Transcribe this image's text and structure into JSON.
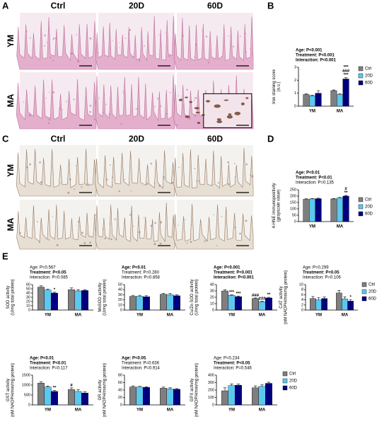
{
  "panel_labels": [
    "A",
    "B",
    "C",
    "D",
    "E"
  ],
  "histology": [
    {
      "columns": [
        "Ctrl",
        "20D",
        "60D"
      ],
      "rows": [
        "YM",
        "MA"
      ]
    },
    {
      "columns": [
        "Ctrl",
        "20D",
        "60D"
      ],
      "rows": [
        "YM",
        "MA"
      ]
    }
  ],
  "chart_data": [
    {
      "type": "bar",
      "stats": [
        {
          "text": "Age: P<0.001",
          "bold": true
        },
        {
          "text": "Treatment: P<0.001",
          "bold": true
        },
        {
          "text": "Interaction: P<0.001",
          "bold": true
        }
      ],
      "ylabel": [
        "Iron staining score",
        "(a.u.)"
      ],
      "categories": [
        "YM",
        "MA"
      ],
      "series": [
        {
          "name": "Ctrl",
          "color": "#7f7f7f",
          "values": [
            0.9,
            1.2
          ],
          "errors": [
            0.05,
            0.05
          ]
        },
        {
          "name": "20D",
          "color": "#5bc8f0",
          "values": [
            0.8,
            0.9
          ],
          "errors": [
            0.05,
            0.05
          ]
        },
        {
          "name": "60D",
          "color": "#00007f",
          "values": [
            1.0,
            2.1
          ],
          "errors": [
            0.2,
            0.1
          ]
        }
      ],
      "ylim": [
        0,
        3
      ],
      "yticks": [
        0,
        1,
        2,
        3
      ],
      "legend": "right",
      "annotations": [
        {
          "text": "***",
          "category": "MA",
          "series": "60D"
        },
        {
          "text": "###",
          "category": "MA",
          "series": "60D"
        },
        {
          "text": "***",
          "category": "MA",
          "series": "60D"
        }
      ]
    },
    {
      "type": "bar",
      "stats": [
        {
          "text": "Age: P<0.01",
          "bold": true
        },
        {
          "text": "Treatment: P<0.01",
          "bold": true
        },
        {
          "text": "Interaction: P=0.135",
          "bold": false
        }
      ],
      "ylabel": [
        "4-HNE immunopositivity",
        "(grayscale value)"
      ],
      "categories": [
        "YM",
        "MA"
      ],
      "series": [
        {
          "name": "Ctrl",
          "color": "#7f7f7f",
          "values": [
            175,
            178
          ],
          "errors": [
            4,
            4
          ]
        },
        {
          "name": "20D",
          "color": "#5bc8f0",
          "values": [
            178,
            185
          ],
          "errors": [
            4,
            4
          ]
        },
        {
          "name": "60D",
          "color": "#00007f",
          "values": [
            180,
            200
          ],
          "errors": [
            4,
            5
          ]
        }
      ],
      "ylim": [
        0,
        250
      ],
      "yticks": [
        0,
        50,
        100,
        150,
        200,
        250
      ],
      "legend": "right",
      "annotations": [
        {
          "text": "#",
          "category": "MA",
          "series": "60D"
        },
        {
          "text": "**",
          "category": "MA",
          "series": "60D"
        }
      ]
    },
    {
      "type": "bar",
      "stats": [
        {
          "text": "Age: P=0.567",
          "bold": false
        },
        {
          "text": "Treatment: P<0.05",
          "bold": true
        },
        {
          "text": "Interaction: P=0.085",
          "bold": false
        }
      ],
      "ylabel": [
        "SOD activity",
        "(U/mg total protein)"
      ],
      "categories": [
        "YM",
        "MA"
      ],
      "series": [
        {
          "name": "Ctrl",
          "color": "#7f7f7f",
          "values": [
            54,
            48
          ],
          "errors": [
            3,
            4
          ]
        },
        {
          "name": "20D",
          "color": "#5bc8f0",
          "values": [
            47,
            45
          ],
          "errors": [
            2,
            3
          ]
        },
        {
          "name": "60D",
          "color": "#00007f",
          "values": [
            40,
            46
          ],
          "errors": [
            2,
            2
          ]
        }
      ],
      "ylim": [
        0,
        60
      ],
      "yticks": [
        0,
        10,
        20,
        30,
        40,
        50,
        60
      ],
      "annotations": [
        {
          "text": "*",
          "category": "YM",
          "series": "60D"
        }
      ]
    },
    {
      "type": "bar",
      "stats": [
        {
          "text": "Age: P<0.01",
          "bold": true
        },
        {
          "text": "Treatment: P=0.280",
          "bold": false
        },
        {
          "text": "Interaction: P=0.858",
          "bold": false
        }
      ],
      "ylabel": [
        "MnSOD activity",
        "(U/mg total protein)"
      ],
      "categories": [
        "YM",
        "MA"
      ],
      "series": [
        {
          "name": "Ctrl",
          "color": "#7f7f7f",
          "values": [
            27,
            31
          ],
          "errors": [
            2,
            2
          ]
        },
        {
          "name": "20D",
          "color": "#5bc8f0",
          "values": [
            27,
            30
          ],
          "errors": [
            2,
            3
          ]
        },
        {
          "name": "60D",
          "color": "#00007f",
          "values": [
            26,
            28
          ],
          "errors": [
            2,
            2
          ]
        }
      ],
      "ylim": [
        0,
        50
      ],
      "yticks": [
        0,
        10,
        20,
        30,
        40,
        50
      ],
      "annotations": []
    },
    {
      "type": "bar",
      "stats": [
        {
          "text": "Age: P<0.001",
          "bold": true
        },
        {
          "text": "Treatment: P<0.001",
          "bold": true
        },
        {
          "text": "Interaction: P<0.001",
          "bold": true
        }
      ],
      "ylabel": [
        "Cu/Zn SOD activity",
        "(U/mg total protein)"
      ],
      "categories": [
        "YM",
        "MA"
      ],
      "series": [
        {
          "name": "Ctrl",
          "color": "#7f7f7f",
          "values": [
            30,
            18
          ],
          "errors": [
            2,
            1
          ]
        },
        {
          "name": "20D",
          "color": "#5bc8f0",
          "values": [
            23,
            13
          ],
          "errors": [
            1,
            1
          ]
        },
        {
          "name": "60D",
          "color": "#00007f",
          "values": [
            21,
            19
          ],
          "errors": [
            1,
            1
          ]
        }
      ],
      "ylim": [
        0,
        40
      ],
      "yticks": [
        0,
        10,
        20,
        30,
        40
      ],
      "annotations": [
        {
          "text": "***",
          "category": "YM",
          "series": "20D"
        },
        {
          "text": "***",
          "category": "YM",
          "series": "60D"
        },
        {
          "text": "###",
          "category": "MA",
          "series": "Ctrl"
        },
        {
          "text": "###",
          "category": "MA",
          "series": "20D"
        },
        {
          "text": "**",
          "category": "MA",
          "series": "60D"
        }
      ]
    },
    {
      "type": "bar",
      "stats": [
        {
          "text": "Age: P=0.299",
          "bold": false
        },
        {
          "text": "Treatment: P<0.05",
          "bold": true
        },
        {
          "text": "Interaction: P=0.106",
          "bold": false
        }
      ],
      "ylabel": [
        "CAT activity",
        "(nM NADPH/min/mg protein)"
      ],
      "categories": [
        "YM",
        "MA"
      ],
      "series": [
        {
          "name": "Ctrl",
          "color": "#7f7f7f",
          "values": [
            4.5,
            6.7
          ],
          "errors": [
            0.8,
            1.0
          ]
        },
        {
          "name": "20D",
          "color": "#5bc8f0",
          "values": [
            4.0,
            4.4
          ],
          "errors": [
            0.8,
            0.8
          ]
        },
        {
          "name": "60D",
          "color": "#00007f",
          "values": [
            4.5,
            3.5
          ],
          "errors": [
            0.6,
            0.6
          ]
        }
      ],
      "ylim": [
        0,
        10
      ],
      "yticks": [
        0,
        2,
        4,
        6,
        8,
        10
      ],
      "legend": "right",
      "annotations": [
        {
          "text": "*",
          "category": "MA",
          "series": "60D"
        }
      ]
    },
    {
      "type": "bar",
      "stats": [
        {
          "text": "Age: P<0.01",
          "bold": true
        },
        {
          "text": "Treatment: P<0.01",
          "bold": true
        },
        {
          "text": "Interaction: P=0.117",
          "bold": false
        }
      ],
      "ylabel": [
        "GST activity",
        "(nM NADPH/min/mg protein)"
      ],
      "categories": [
        "YM",
        "MA"
      ],
      "series": [
        {
          "name": "Ctrl",
          "color": "#7f7f7f",
          "values": [
            1100,
            780
          ],
          "errors": [
            60,
            80
          ]
        },
        {
          "name": "20D",
          "color": "#5bc8f0",
          "values": [
            900,
            680
          ],
          "errors": [
            50,
            80
          ]
        },
        {
          "name": "60D",
          "color": "#00007f",
          "values": [
            680,
            600
          ],
          "errors": [
            50,
            60
          ]
        }
      ],
      "ylim": [
        0,
        1500
      ],
      "yticks": [
        0,
        500,
        1000,
        1500
      ],
      "annotations": [
        {
          "text": "**",
          "category": "YM",
          "series": "60D"
        },
        {
          "text": "#",
          "category": "MA",
          "series": "Ctrl"
        }
      ]
    },
    {
      "type": "bar",
      "stats": [
        {
          "text": "Age: P<0.05",
          "bold": true
        },
        {
          "text": "Treatment: P=0.636",
          "bold": false
        },
        {
          "text": "Interaction: P=0.914",
          "bold": false
        }
      ],
      "ylabel": [
        "GR activity",
        "(nM NADPH/min/mg protein)"
      ],
      "categories": [
        "YM",
        "MA"
      ],
      "series": [
        {
          "name": "Ctrl",
          "color": "#7f7f7f",
          "values": [
            48,
            45
          ],
          "errors": [
            3,
            3
          ]
        },
        {
          "name": "20D",
          "color": "#5bc8f0",
          "values": [
            48,
            43
          ],
          "errors": [
            2,
            3
          ]
        },
        {
          "name": "60D",
          "color": "#00007f",
          "values": [
            47,
            42
          ],
          "errors": [
            2,
            2
          ]
        }
      ],
      "ylim": [
        0,
        80
      ],
      "yticks": [
        0,
        20,
        40,
        60,
        80
      ],
      "annotations": []
    },
    {
      "type": "bar",
      "stats": [
        {
          "text": "Age: P=0.234",
          "bold": false
        },
        {
          "text": "Treatment: P<0.05",
          "bold": true
        },
        {
          "text": "Interaction: P=0.546",
          "bold": false
        }
      ],
      "ylabel": [
        "GPX activity",
        "(nM NADPH/min/mg protein)"
      ],
      "categories": [
        "YM",
        "MA"
      ],
      "series": [
        {
          "name": "Ctrl",
          "color": "#7f7f7f",
          "values": [
            190,
            230
          ],
          "errors": [
            40,
            25
          ]
        },
        {
          "name": "20D",
          "color": "#5bc8f0",
          "values": [
            260,
            250
          ],
          "errors": [
            20,
            25
          ]
        },
        {
          "name": "60D",
          "color": "#00007f",
          "values": [
            265,
            290
          ],
          "errors": [
            15,
            15
          ]
        }
      ],
      "ylim": [
        0,
        400
      ],
      "yticks": [
        0,
        100,
        200,
        300,
        400
      ],
      "legend": "right",
      "annotations": []
    }
  ]
}
